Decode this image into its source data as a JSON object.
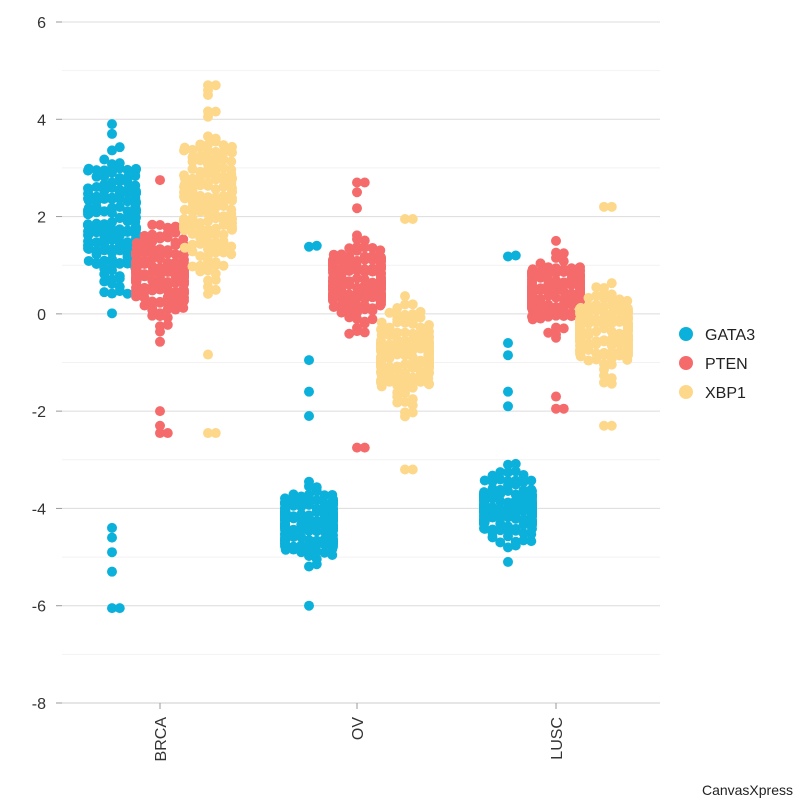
{
  "chart_data": {
    "type": "scatter",
    "subtype": "beeswarm",
    "categories": [
      "BRCA",
      "OV",
      "LUSC"
    ],
    "ylim": [
      -8,
      6
    ],
    "yticks": [
      -8,
      -6,
      -4,
      -2,
      0,
      2,
      4,
      6
    ],
    "y_tick_labels": [
      "-8",
      "-6",
      "-4",
      "-2",
      "0",
      "2",
      "4",
      "6"
    ],
    "series": [
      {
        "name": "GATA3",
        "color": "#0CB1DB",
        "groups": [
          {
            "category": "BRCA",
            "min": -6.05,
            "max": 3.9,
            "center": 1.9,
            "spread": 1.2,
            "outliers": [
              -6.05,
              -5.3,
              -4.9,
              -4.6,
              -4.4
            ]
          },
          {
            "category": "OV",
            "min": -6.0,
            "max": 1.4,
            "center": -4.3,
            "spread": 0.65,
            "outliers": [
              1.38,
              -0.95,
              -1.6,
              -2.1
            ]
          },
          {
            "category": "LUSC",
            "min": -5.1,
            "max": 1.2,
            "center": -4.0,
            "spread": 0.55,
            "outliers": [
              1.18,
              -0.6,
              -0.85,
              -1.6,
              -1.9
            ]
          }
        ]
      },
      {
        "name": "PTEN",
        "color": "#F56B6B",
        "groups": [
          {
            "category": "BRCA",
            "min": -2.45,
            "max": 2.75,
            "center": 0.85,
            "spread": 0.7,
            "outliers": [
              -2.45,
              -2.3,
              -2.0
            ]
          },
          {
            "category": "OV",
            "min": -2.75,
            "max": 2.7,
            "center": 0.6,
            "spread": 0.8,
            "outliers": [
              2.7,
              2.5,
              -2.75
            ]
          },
          {
            "category": "LUSC",
            "min": -1.95,
            "max": 1.5,
            "center": 0.45,
            "spread": 0.55,
            "outliers": [
              -1.95,
              -1.7
            ]
          }
        ]
      },
      {
        "name": "XBP1",
        "color": "#FDD88B",
        "groups": [
          {
            "category": "BRCA",
            "min": -2.45,
            "max": 4.7,
            "center": 2.3,
            "spread": 1.3,
            "outliers": [
              4.7,
              4.5,
              -2.45
            ]
          },
          {
            "category": "OV",
            "min": -3.2,
            "max": 1.95,
            "center": -0.9,
            "spread": 0.9,
            "outliers": [
              1.95,
              -3.2
            ]
          },
          {
            "category": "LUSC",
            "min": -2.3,
            "max": 2.2,
            "center": -0.3,
            "spread": 0.65,
            "outliers": [
              2.2,
              -2.3
            ]
          }
        ]
      }
    ],
    "legend": {
      "position": "right",
      "entries": [
        "GATA3",
        "PTEN",
        "XBP1"
      ]
    },
    "grid": true
  },
  "watermark": "CanvasXpress"
}
